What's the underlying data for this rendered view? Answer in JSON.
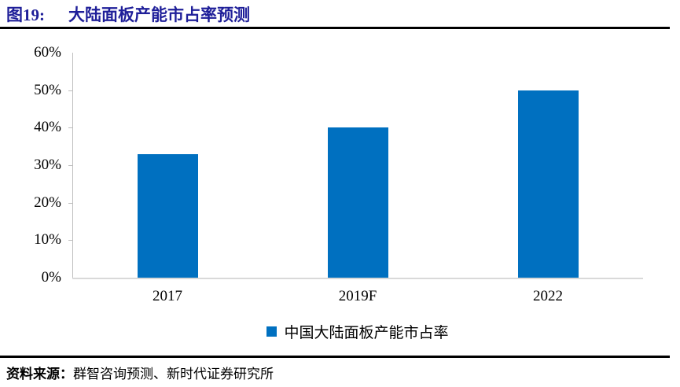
{
  "figure": {
    "label": "图19:",
    "title": "大陆面板产能市占率预测",
    "title_color": "#1f1f99"
  },
  "chart_data": {
    "type": "bar",
    "title": "大陆面板产能市占率预测",
    "categories": [
      "2017",
      "2019F",
      "2022"
    ],
    "values": [
      33,
      40,
      50
    ],
    "unit": "%",
    "xlabel": "",
    "ylabel": "",
    "ylim": [
      0,
      60
    ],
    "ytick_step": 10,
    "ytick_labels": [
      "0%",
      "10%",
      "20%",
      "30%",
      "40%",
      "50%",
      "60%"
    ],
    "grid": false,
    "legend_position": "bottom",
    "legend_label": "中国大陆面板产能市占率",
    "bar_color": "#0070C0",
    "axis_color": "#d9d9d9"
  },
  "source": {
    "prefix": "资料来源：",
    "text": "群智咨询预测、新时代证券研究所"
  }
}
